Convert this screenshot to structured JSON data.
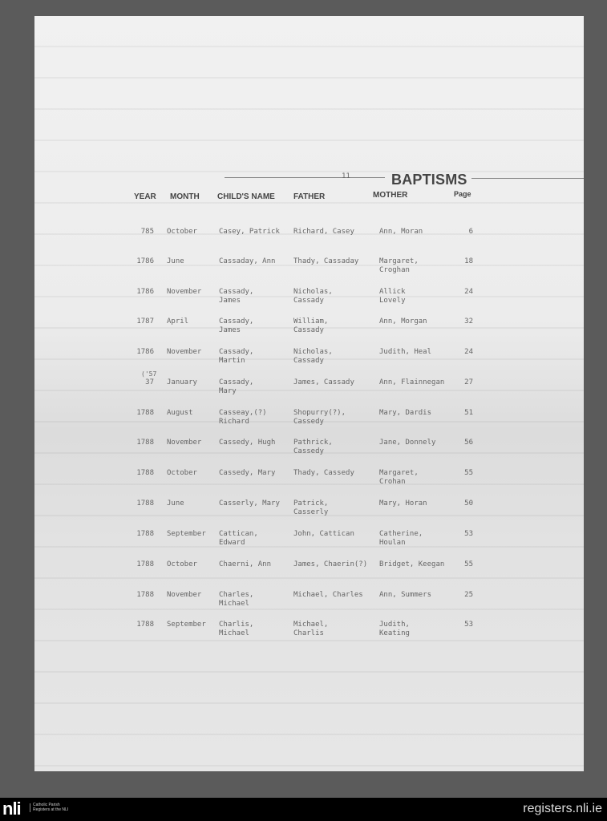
{
  "document": {
    "title": "BAPTISMS",
    "page_marker": "11",
    "headers": {
      "year": "YEAR",
      "month": "MONTH",
      "child": "CHILD'S NAME",
      "father": "FATHER",
      "mother": "MOTHER",
      "page": "Page"
    },
    "rows": [
      {
        "year": "785",
        "month": "October",
        "child": "Casey, Patrick",
        "father": "Richard, Casey",
        "mother": "Ann, Moran",
        "page": "6"
      },
      {
        "year": "1786",
        "month": "June",
        "child": "Cassaday, Ann",
        "father": "Thady, Cassaday",
        "mother": "Margaret,\nCroghan",
        "page": "18"
      },
      {
        "year": "1786",
        "month": "November",
        "child": "Cassady,\nJames",
        "father": "Nicholas,\nCassady",
        "mother": "Allick\nLovely",
        "page": "24"
      },
      {
        "year": "1787",
        "month": "April",
        "child": "Cassady,\nJames",
        "father": "William,\nCassady",
        "mother": "Ann, Morgan",
        "page": "32"
      },
      {
        "year": "1786",
        "month": "November",
        "child": "Cassady,\nMartin",
        "father": "Nicholas,\nCassady",
        "mother": "Judith, Heal",
        "page": "24"
      },
      {
        "year": "37",
        "note": "('57",
        "month": "January",
        "child": "Cassady,\nMary",
        "father": "James, Cassady",
        "mother": "Ann, Flainnegan",
        "page": "27"
      },
      {
        "year": "1788",
        "month": "August",
        "child": "Casseay,(?)\nRichard",
        "father": "Shopurry(?),\nCassedy",
        "mother": "Mary, Dardis",
        "page": "51"
      },
      {
        "year": "1788",
        "month": "November",
        "child": "Cassedy, Hugh",
        "father": "Pathrick,\nCassedy",
        "mother": "Jane, Donnely",
        "page": "56"
      },
      {
        "year": "1788",
        "month": "October",
        "child": "Cassedy, Mary",
        "father": "Thady, Cassedy",
        "mother": "Margaret,\nCrohan",
        "page": "55"
      },
      {
        "year": "1788",
        "month": "June",
        "child": "Casserly, Mary",
        "father": "Patrick,\nCasserly",
        "mother": "Mary, Horan",
        "page": "50"
      },
      {
        "year": "1788",
        "month": "September",
        "child": "Cattican,\nEdward",
        "father": "John, Cattican",
        "mother": "Catherine,\nHoulan",
        "page": "53"
      },
      {
        "year": "1788",
        "month": "October",
        "child": "Chaerni, Ann",
        "father": "James, Chaerin(?)",
        "mother": "Bridget, Keegan",
        "page": "55"
      },
      {
        "year": "1788",
        "month": "November",
        "child": "Charles,\nMichael",
        "father": "Michael, Charles",
        "mother": "Ann, Summers",
        "page": "25"
      },
      {
        "year": "1788",
        "month": "September",
        "child": "Charlis,\nMichael",
        "father": "Michael,\nCharlis",
        "mother": "Judith,\nKeating",
        "page": "53"
      }
    ]
  },
  "footer": {
    "logo": "nli",
    "logo_caption": "Catholic Parish Registers at the NLI",
    "url": "registers.nli.ie"
  }
}
